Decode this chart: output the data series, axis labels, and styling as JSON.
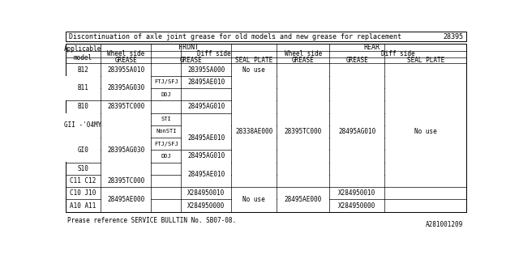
{
  "title": "Discontinuation of axle joint grease for old models and new grease for replacement",
  "title_part_num": "28395",
  "footer": "Prease reference SERVICE BULLTIN No. SB07-08.",
  "watermark": "A281001209",
  "bg_color": "#ffffff",
  "border_color": "#000000"
}
